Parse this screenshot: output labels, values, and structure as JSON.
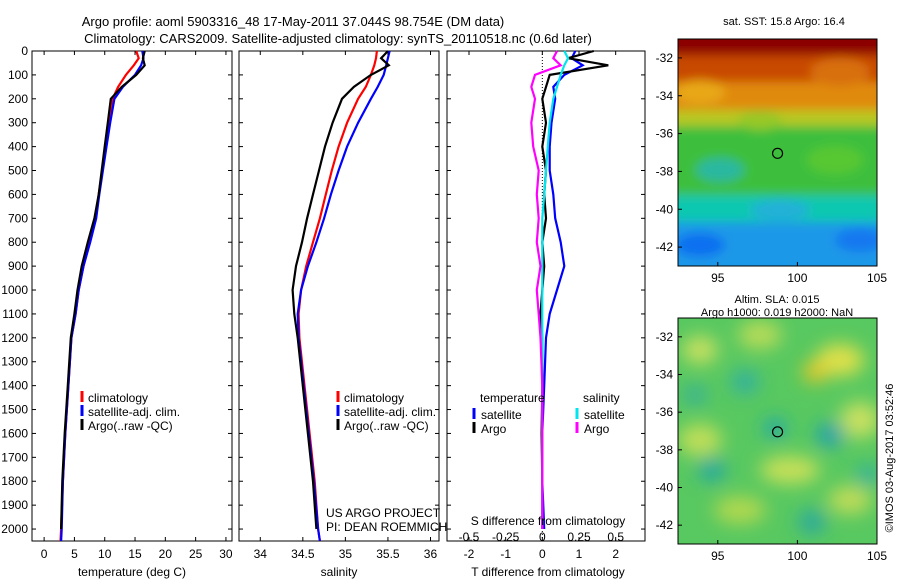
{
  "header": {
    "line1": "Argo profile: aoml 5903316_48 17-May-2011 37.044S 98.754E (DM data)",
    "line2": "Climatology: CARS2009. Satellite-adjusted climatology: synTS_20110518.nc (0.6d later)"
  },
  "colors": {
    "climatology": "#ff0000",
    "satellite": "#0000ff",
    "argo": "#000000",
    "sal_satellite": "#00e5ee",
    "sal_argo": "#ff00ff"
  },
  "depth_ticks": [
    "0",
    "100",
    "200",
    "300",
    "400",
    "500",
    "600",
    "700",
    "800",
    "900",
    "1000",
    "1100",
    "1200",
    "1300",
    "1400",
    "1500",
    "1600",
    "1700",
    "1800",
    "1900",
    "2000"
  ],
  "chart_data": [
    {
      "type": "line",
      "name": "temperature-profile",
      "xlabel": "temperature (deg C)",
      "xlim": [
        -2,
        31
      ],
      "ylim": [
        2050,
        0
      ],
      "xticks": [
        "0",
        "5",
        "10",
        "15",
        "20",
        "25",
        "30"
      ],
      "xtick_values": [
        0,
        5,
        10,
        15,
        20,
        25,
        30
      ],
      "legend": [
        "climatology",
        "satellite-adj. clim.",
        "Argo(..raw -QC)"
      ],
      "series": [
        {
          "name": "climatology",
          "color": "#ff0000",
          "x": [
            15.2,
            15.6,
            14.8,
            13.5,
            12.2,
            11.3,
            10.8,
            10.2,
            9.6,
            9.0,
            8.5,
            7.5,
            6.5,
            5.7,
            5.2,
            4.5,
            4.0,
            3.5,
            3.1,
            2.8,
            2.7,
            2.7
          ],
          "y": [
            0,
            30,
            60,
            100,
            150,
            200,
            300,
            400,
            500,
            600,
            700,
            800,
            900,
            1000,
            1100,
            1200,
            1400,
            1600,
            1800,
            2000,
            2050,
            2060
          ]
        },
        {
          "name": "satellite-adj. clim.",
          "color": "#0000ff",
          "x": [
            16.2,
            16.4,
            16.0,
            15.0,
            13.0,
            11.6,
            10.9,
            10.3,
            9.7,
            9.1,
            8.6,
            7.6,
            6.5,
            5.7,
            5.2,
            4.5,
            4.0,
            3.5,
            3.1,
            2.9,
            2.8,
            2.8
          ],
          "y": [
            0,
            30,
            60,
            100,
            150,
            200,
            300,
            400,
            500,
            600,
            700,
            800,
            900,
            1000,
            1100,
            1200,
            1400,
            1600,
            1800,
            2000,
            2050,
            2060
          ]
        },
        {
          "name": "Argo(..raw -QC)",
          "color": "#000000",
          "x": [
            16.6,
            16.3,
            16.6,
            15.2,
            12.8,
            11.0,
            10.5,
            10.0,
            9.5,
            9.0,
            8.3,
            7.2,
            6.2,
            5.5,
            5.0,
            4.4,
            3.9,
            3.4,
            3.0,
            2.8
          ],
          "y": [
            0,
            30,
            60,
            100,
            150,
            200,
            300,
            400,
            500,
            600,
            700,
            800,
            900,
            1000,
            1100,
            1200,
            1400,
            1600,
            1800,
            2000
          ]
        }
      ]
    },
    {
      "type": "line",
      "name": "salinity-profile",
      "xlabel": "salinity",
      "xlim": [
        33.75,
        36.1
      ],
      "ylim": [
        2050,
        0
      ],
      "xticks": [
        "34",
        "34.5",
        "35",
        "35.5",
        "36"
      ],
      "xtick_values": [
        34,
        34.5,
        35,
        35.5,
        36
      ],
      "legend": [
        "climatology",
        "satellite-adj. clim.",
        "Argo(..raw -QC)"
      ],
      "annotation": [
        "US ARGO PROJECT",
        "PI: DEAN ROEMMICH"
      ],
      "series": [
        {
          "name": "climatology",
          "color": "#ff0000",
          "x": [
            35.37,
            35.36,
            35.34,
            35.3,
            35.24,
            35.15,
            35.02,
            34.92,
            34.84,
            34.77,
            34.7,
            34.62,
            34.54,
            34.48,
            34.45,
            34.46,
            34.52,
            34.58,
            34.64,
            34.68,
            34.7
          ],
          "y": [
            0,
            30,
            60,
            100,
            150,
            200,
            300,
            400,
            500,
            600,
            700,
            800,
            900,
            1000,
            1100,
            1200,
            1400,
            1600,
            1800,
            2000,
            2050
          ]
        },
        {
          "name": "satellite-adj. clim.",
          "color": "#0000ff",
          "x": [
            35.52,
            35.5,
            35.48,
            35.45,
            35.38,
            35.3,
            35.15,
            35.02,
            34.92,
            34.83,
            34.75,
            34.66,
            34.56,
            34.48,
            34.44,
            34.45,
            34.51,
            34.57,
            34.63,
            34.68,
            34.7
          ],
          "y": [
            0,
            30,
            60,
            100,
            150,
            200,
            300,
            400,
            500,
            600,
            700,
            800,
            900,
            1000,
            1100,
            1200,
            1400,
            1600,
            1800,
            2000,
            2050
          ]
        },
        {
          "name": "Argo(..raw -QC)",
          "color": "#000000",
          "x": [
            35.5,
            35.42,
            35.51,
            35.3,
            35.1,
            34.96,
            34.85,
            34.76,
            34.69,
            34.62,
            34.55,
            34.49,
            34.42,
            34.38,
            34.4,
            34.44,
            34.5,
            34.56,
            34.62,
            34.66
          ],
          "y": [
            0,
            30,
            60,
            100,
            150,
            200,
            300,
            400,
            500,
            600,
            700,
            800,
            900,
            1000,
            1100,
            1200,
            1400,
            1600,
            1800,
            2000
          ]
        }
      ]
    },
    {
      "type": "line",
      "name": "difference-profile",
      "xlabel": "T difference from climatology",
      "xlabel_top": "S difference from climatology",
      "xlim": [
        -2.6,
        2.8
      ],
      "ylim": [
        2050,
        0
      ],
      "xticks": [
        "-2",
        "-1",
        "0",
        "1",
        "2"
      ],
      "xtick_values": [
        -2,
        -1,
        0,
        1,
        2
      ],
      "sticks_top": [
        "-0.5",
        "-0.25",
        "0",
        "0.25",
        "0.5"
      ],
      "stick_values": [
        -2,
        -1,
        0,
        1,
        2
      ],
      "legend_headers": [
        "temperature",
        "salinity"
      ],
      "legend": [
        "satellite",
        "Argo",
        "satellite",
        "Argo"
      ],
      "series": [
        {
          "name": "temperature satellite",
          "color": "#0000ff",
          "x": [
            0.9,
            0.8,
            1.1,
            0.6,
            0.3,
            0.35,
            0.25,
            0.2,
            0.2,
            0.3,
            0.35,
            0.5,
            0.6,
            0.4,
            0.2,
            0.1,
            0.05,
            0.0,
            0.0,
            0.05
          ],
          "y": [
            0,
            30,
            60,
            100,
            150,
            200,
            300,
            400,
            500,
            600,
            700,
            800,
            900,
            1000,
            1100,
            1200,
            1400,
            1600,
            1800,
            2000
          ]
        },
        {
          "name": "temperature Argo",
          "color": "#000000",
          "x": [
            1.4,
            0.7,
            1.8,
            0.2,
            0.1,
            0.0,
            0.1,
            0.0,
            0.1,
            0.05,
            0.1,
            0.0,
            0.05,
            0.0,
            -0.05,
            0.0,
            0.0,
            -0.02,
            0.0,
            0.0
          ],
          "y": [
            0,
            30,
            60,
            100,
            150,
            200,
            300,
            400,
            500,
            600,
            700,
            800,
            900,
            1000,
            1100,
            1200,
            1400,
            1600,
            1800,
            2000
          ]
        },
        {
          "name": "salinity satellite",
          "color": "#00e5ee",
          "x": [
            0.6,
            0.7,
            0.6,
            0.5,
            0.4,
            0.3,
            0.2,
            0.15,
            0.1,
            0.05,
            0.0,
            0.0,
            0.0,
            0.0,
            0.0,
            0.0,
            0.0,
            0.0,
            0.0,
            0.0
          ],
          "y": [
            0,
            30,
            60,
            100,
            150,
            200,
            300,
            400,
            500,
            600,
            700,
            800,
            900,
            1000,
            1100,
            1200,
            1400,
            1600,
            1800,
            2000
          ]
        },
        {
          "name": "salinity Argo",
          "color": "#ff00ff",
          "x": [
            0.4,
            0.3,
            0.5,
            -0.2,
            -0.3,
            -0.2,
            -0.3,
            -0.25,
            -0.1,
            -0.15,
            -0.1,
            -0.15,
            -0.05,
            -0.15,
            -0.1,
            -0.05,
            0.0,
            0.0,
            0.0,
            0.0
          ],
          "y": [
            0,
            30,
            60,
            100,
            150,
            200,
            300,
            400,
            500,
            600,
            700,
            800,
            900,
            1000,
            1100,
            1200,
            1400,
            1600,
            1800,
            2000
          ]
        }
      ]
    },
    {
      "type": "heatmap",
      "name": "sst-map",
      "title": "sat. SST: 15.8 Argo: 16.4",
      "xlim": [
        92.5,
        105
      ],
      "ylim": [
        -43,
        -31
      ],
      "xticks": [
        "95",
        "100",
        "105"
      ],
      "xtick_values": [
        95,
        100,
        105
      ],
      "yticks": [
        "-32",
        "-34",
        "-36",
        "-38",
        "-40",
        "-42"
      ],
      "ytick_values": [
        -32,
        -34,
        -36,
        -38,
        -40,
        -42
      ],
      "marker": {
        "lon": 98.754,
        "lat": -37.044
      }
    },
    {
      "type": "heatmap",
      "name": "sla-map",
      "title_lines": [
        "Altim. SLA: 0.015",
        "Argo h1000: 0.019 h2000: NaN"
      ],
      "xlim": [
        92.5,
        105
      ],
      "ylim": [
        -43,
        -31
      ],
      "xticks": [
        "95",
        "100",
        "105"
      ],
      "xtick_values": [
        95,
        100,
        105
      ],
      "yticks": [
        "-32",
        "-34",
        "-36",
        "-38",
        "-40",
        "-42"
      ],
      "ytick_values": [
        -32,
        -34,
        -36,
        -38,
        -40,
        -42
      ],
      "marker": {
        "lon": 98.754,
        "lat": -37.044
      }
    }
  ],
  "credit": "©IMOS 03-Aug-2017 03:52:46"
}
